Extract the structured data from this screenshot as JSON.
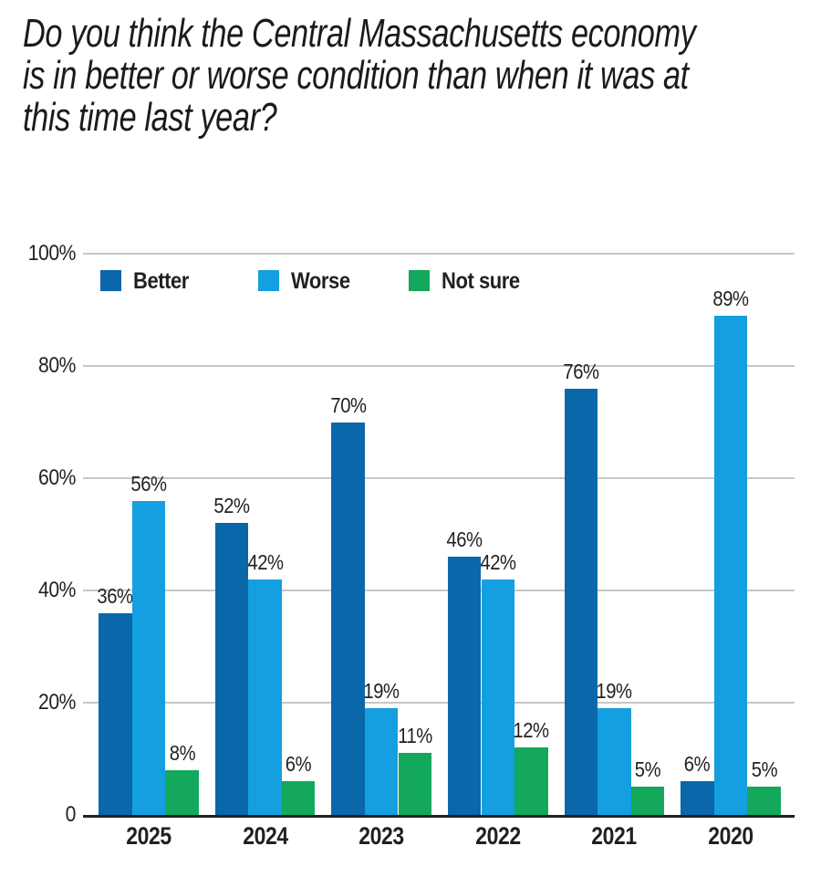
{
  "chart_data": {
    "type": "bar",
    "title": "Do you think the Central Massachusetts economy is in better or worse condition than when it was at this time last year?",
    "title_lines": [
      "Do you think the Central Massachusetts economy",
      "is in better or worse condition than when it was at",
      "this time last year?"
    ],
    "categories": [
      "2025",
      "2024",
      "2023",
      "2022",
      "2021",
      "2020"
    ],
    "series": [
      {
        "name": "Better",
        "color": "#0a67aa",
        "values": [
          36,
          52,
          70,
          46,
          76,
          6
        ]
      },
      {
        "name": "Worse",
        "color": "#149fe0",
        "values": [
          56,
          42,
          19,
          42,
          19,
          89
        ]
      },
      {
        "name": "Not sure",
        "color": "#13a85c",
        "values": [
          8,
          6,
          11,
          12,
          5,
          5
        ]
      }
    ],
    "value_label_suffix": "%",
    "y_ticks": [
      "100%",
      "80%",
      "60%",
      "40%",
      "20%",
      "0"
    ],
    "ylim": [
      0,
      100
    ],
    "grid": true,
    "legend_position": "top-left-inside",
    "colors": {
      "text": "#231f20",
      "gridline": "#c7c7c9",
      "axis": "#231f20",
      "background": "#ffffff"
    }
  }
}
